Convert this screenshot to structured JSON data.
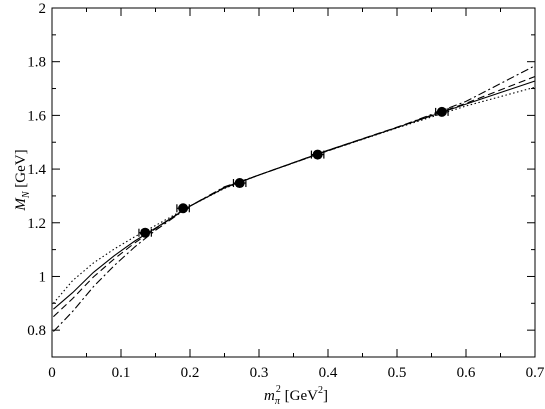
{
  "chart_data": {
    "type": "line",
    "xlabel": {
      "base": "m",
      "sub": "π",
      "sup": "2",
      "unit_pre": " [GeV",
      "unit_sup": "2",
      "unit_post": "]"
    },
    "ylabel": {
      "base": "M",
      "sub": "N",
      "unit": " [GeV]"
    },
    "xlim": [
      0,
      0.7
    ],
    "ylim": [
      0.7,
      2.0
    ],
    "x_ticks": [
      0,
      0.1,
      0.2,
      0.3,
      0.4,
      0.5,
      0.6,
      0.7
    ],
    "x_tick_labels": [
      "0",
      "0.1",
      "0.2",
      "0.3",
      "0.4",
      "0.5",
      "0.6",
      "0.7"
    ],
    "y_ticks": [
      0.8,
      1.0,
      1.2,
      1.4,
      1.6,
      1.8,
      2.0
    ],
    "y_tick_labels": [
      "0.8",
      "1",
      "1.2",
      "1.4",
      "1.6",
      "1.8",
      "2"
    ],
    "grid": false,
    "points": [
      {
        "x": 0.135,
        "y": 1.163,
        "xerr": 0.009
      },
      {
        "x": 0.19,
        "y": 1.254,
        "xerr": 0.009
      },
      {
        "x": 0.272,
        "y": 1.348,
        "xerr": 0.009
      },
      {
        "x": 0.385,
        "y": 1.454,
        "xerr": 0.009
      },
      {
        "x": 0.565,
        "y": 1.613,
        "xerr": 0.009
      }
    ],
    "series": [
      {
        "style": "solid",
        "x": [
          0.002,
          0.03,
          0.06,
          0.09,
          0.12,
          0.15,
          0.2,
          0.25,
          0.3,
          0.4,
          0.5,
          0.6,
          0.7
        ],
        "y": [
          0.878,
          0.94,
          1.015,
          1.077,
          1.132,
          1.18,
          1.262,
          1.33,
          1.378,
          1.47,
          1.555,
          1.642,
          1.728
        ]
      },
      {
        "style": "dotted",
        "x": [
          0.002,
          0.03,
          0.06,
          0.09,
          0.12,
          0.15,
          0.2,
          0.25,
          0.3,
          0.4,
          0.5,
          0.6,
          0.7
        ],
        "y": [
          0.9,
          0.985,
          1.05,
          1.102,
          1.148,
          1.19,
          1.262,
          1.328,
          1.378,
          1.468,
          1.553,
          1.635,
          1.705
        ]
      },
      {
        "style": "dashed",
        "x": [
          0.002,
          0.03,
          0.06,
          0.09,
          0.12,
          0.15,
          0.2,
          0.25,
          0.3,
          0.4,
          0.5,
          0.6,
          0.7
        ],
        "y": [
          0.85,
          0.918,
          0.998,
          1.065,
          1.125,
          1.178,
          1.262,
          1.332,
          1.378,
          1.47,
          1.556,
          1.645,
          1.745
        ]
      },
      {
        "style": "dashdot",
        "x": [
          0.002,
          0.03,
          0.06,
          0.09,
          0.12,
          0.15,
          0.2,
          0.25,
          0.3,
          0.4,
          0.5,
          0.6,
          0.7
        ],
        "y": [
          0.795,
          0.87,
          0.962,
          1.04,
          1.11,
          1.172,
          1.262,
          1.334,
          1.378,
          1.468,
          1.555,
          1.652,
          1.785
        ]
      }
    ]
  }
}
